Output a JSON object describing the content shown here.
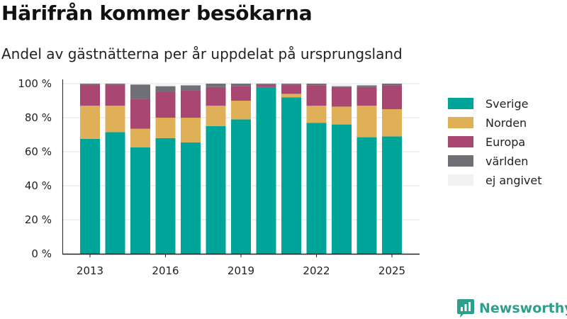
{
  "header": {
    "title": "Härifrån kommer besökarna",
    "subtitle": "Andel av gästnätterna per år uppdelat på ursprungsland"
  },
  "brand": {
    "name": "Newsworthy",
    "icon": "newsworthy-logo-icon",
    "color": "#2e9f8c"
  },
  "chart_data": {
    "type": "bar",
    "stacked": true,
    "categories": [
      "2013",
      "2014",
      "2015",
      "2016",
      "2017",
      "2018",
      "2019",
      "2020",
      "2021",
      "2022",
      "2023",
      "2024",
      "2025"
    ],
    "x_tick_labels": [
      "2013",
      "2016",
      "2019",
      "2022",
      "2025"
    ],
    "y_tick_labels": [
      "0 %",
      "20 %",
      "40 %",
      "60 %",
      "80 %",
      "100 %"
    ],
    "ylim": [
      0,
      100
    ],
    "y_unit": "%",
    "grid": true,
    "legend_position": "right",
    "series": [
      {
        "name": "Sverige",
        "color": "#00a59a",
        "values": [
          67.5,
          71.5,
          62.5,
          68,
          65.5,
          75,
          79,
          98,
          92,
          77,
          76,
          68.5,
          69
        ]
      },
      {
        "name": "Norden",
        "color": "#dfb057",
        "values": [
          19.5,
          15.5,
          11,
          12,
          14.5,
          12,
          11,
          0,
          2,
          10,
          10.5,
          18.5,
          16
        ]
      },
      {
        "name": "Europa",
        "color": "#a84872",
        "values": [
          12.5,
          12.5,
          17.5,
          15,
          16,
          11,
          8.5,
          1.5,
          5.5,
          12,
          11.5,
          11,
          14
        ]
      },
      {
        "name": "världen",
        "color": "#6f6f75",
        "values": [
          0.5,
          0.5,
          8.5,
          3.5,
          3,
          2,
          1.5,
          0.5,
          0.5,
          1,
          0.5,
          1,
          1
        ]
      },
      {
        "name": "ej angivet",
        "color": "#f2f2f4",
        "values": [
          0,
          0,
          0.5,
          1.5,
          1,
          0,
          0,
          0,
          0,
          0,
          1.5,
          1,
          0
        ]
      }
    ]
  }
}
